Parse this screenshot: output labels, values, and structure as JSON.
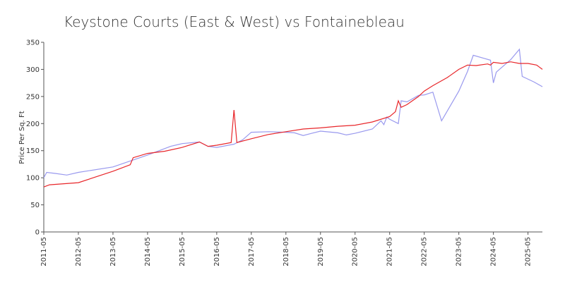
{
  "chart_data": {
    "type": "line",
    "title": "Keystone Courts (East & West) vs Fontainebleau",
    "ylabel": "Price Per Sq. Ft",
    "xlim": [
      "2011-05",
      "2025-10"
    ],
    "xticks": [
      "2011-05",
      "2012-05",
      "2013-05",
      "2014-05",
      "2015-05",
      "2016-05",
      "2017-05",
      "2018-05",
      "2019-05",
      "2020-05",
      "2021-05",
      "2022-05",
      "2023-05",
      "2024-05",
      "2025-05"
    ],
    "ylim": [
      0,
      350
    ],
    "yticks": [
      0,
      50,
      100,
      150,
      200,
      250,
      300,
      350
    ],
    "grid": false,
    "series": [
      {
        "color": "#9999ee",
        "x": [
          "2011-05",
          "2011-06",
          "2011-09",
          "2012-01",
          "2012-05",
          "2013-05",
          "2014-05",
          "2015-01",
          "2015-05",
          "2015-11",
          "2016-02",
          "2016-05",
          "2016-11",
          "2017-02",
          "2017-05",
          "2017-11",
          "2018-05",
          "2018-08",
          "2018-11",
          "2019-02",
          "2019-05",
          "2019-11",
          "2020-02",
          "2020-05",
          "2020-11",
          "2021-02",
          "2021-03",
          "2021-04",
          "2021-05",
          "2021-08",
          "2021-09",
          "2021-11",
          "2022-03",
          "2022-05",
          "2022-08",
          "2022-11",
          "2023-05",
          "2023-08",
          "2023-10",
          "2024-02",
          "2024-04",
          "2024-05",
          "2024-06",
          "2024-11",
          "2025-02",
          "2025-03",
          "2025-07",
          "2025-10"
        ],
        "values": [
          100,
          110,
          108,
          105,
          110,
          120,
          142,
          158,
          163,
          166,
          158,
          156,
          162,
          170,
          184,
          185,
          184,
          183,
          178,
          182,
          186,
          183,
          179,
          182,
          190,
          205,
          198,
          212,
          208,
          200,
          242,
          240,
          252,
          253,
          258,
          205,
          260,
          296,
          326,
          320,
          317,
          275,
          295,
          318,
          337,
          287,
          277,
          268
        ]
      },
      {
        "color": "#e8262a",
        "x": [
          "2011-05",
          "2011-07",
          "2012-05",
          "2013-05",
          "2013-11",
          "2013-12",
          "2014-05",
          "2014-11",
          "2015-05",
          "2015-11",
          "2016-02",
          "2016-05",
          "2016-10",
          "2016-11",
          "2016-12",
          "2017-05",
          "2017-11",
          "2018-05",
          "2018-11",
          "2019-05",
          "2019-11",
          "2020-05",
          "2020-11",
          "2021-05",
          "2021-07",
          "2021-08",
          "2021-09",
          "2021-11",
          "2022-03",
          "2022-05",
          "2022-08",
          "2023-01",
          "2023-05",
          "2023-08",
          "2023-11",
          "2024-03",
          "2024-04",
          "2024-05",
          "2024-08",
          "2024-11",
          "2025-02",
          "2025-05",
          "2025-08",
          "2025-10"
        ],
        "values": [
          83,
          87,
          91,
          112,
          124,
          137,
          145,
          149,
          156,
          166,
          158,
          160,
          165,
          225,
          165,
          172,
          180,
          185,
          190,
          192,
          195,
          197,
          203,
          213,
          222,
          242,
          230,
          235,
          250,
          260,
          270,
          285,
          300,
          308,
          307,
          310,
          308,
          313,
          311,
          314,
          311,
          311,
          308,
          300
        ]
      }
    ]
  }
}
